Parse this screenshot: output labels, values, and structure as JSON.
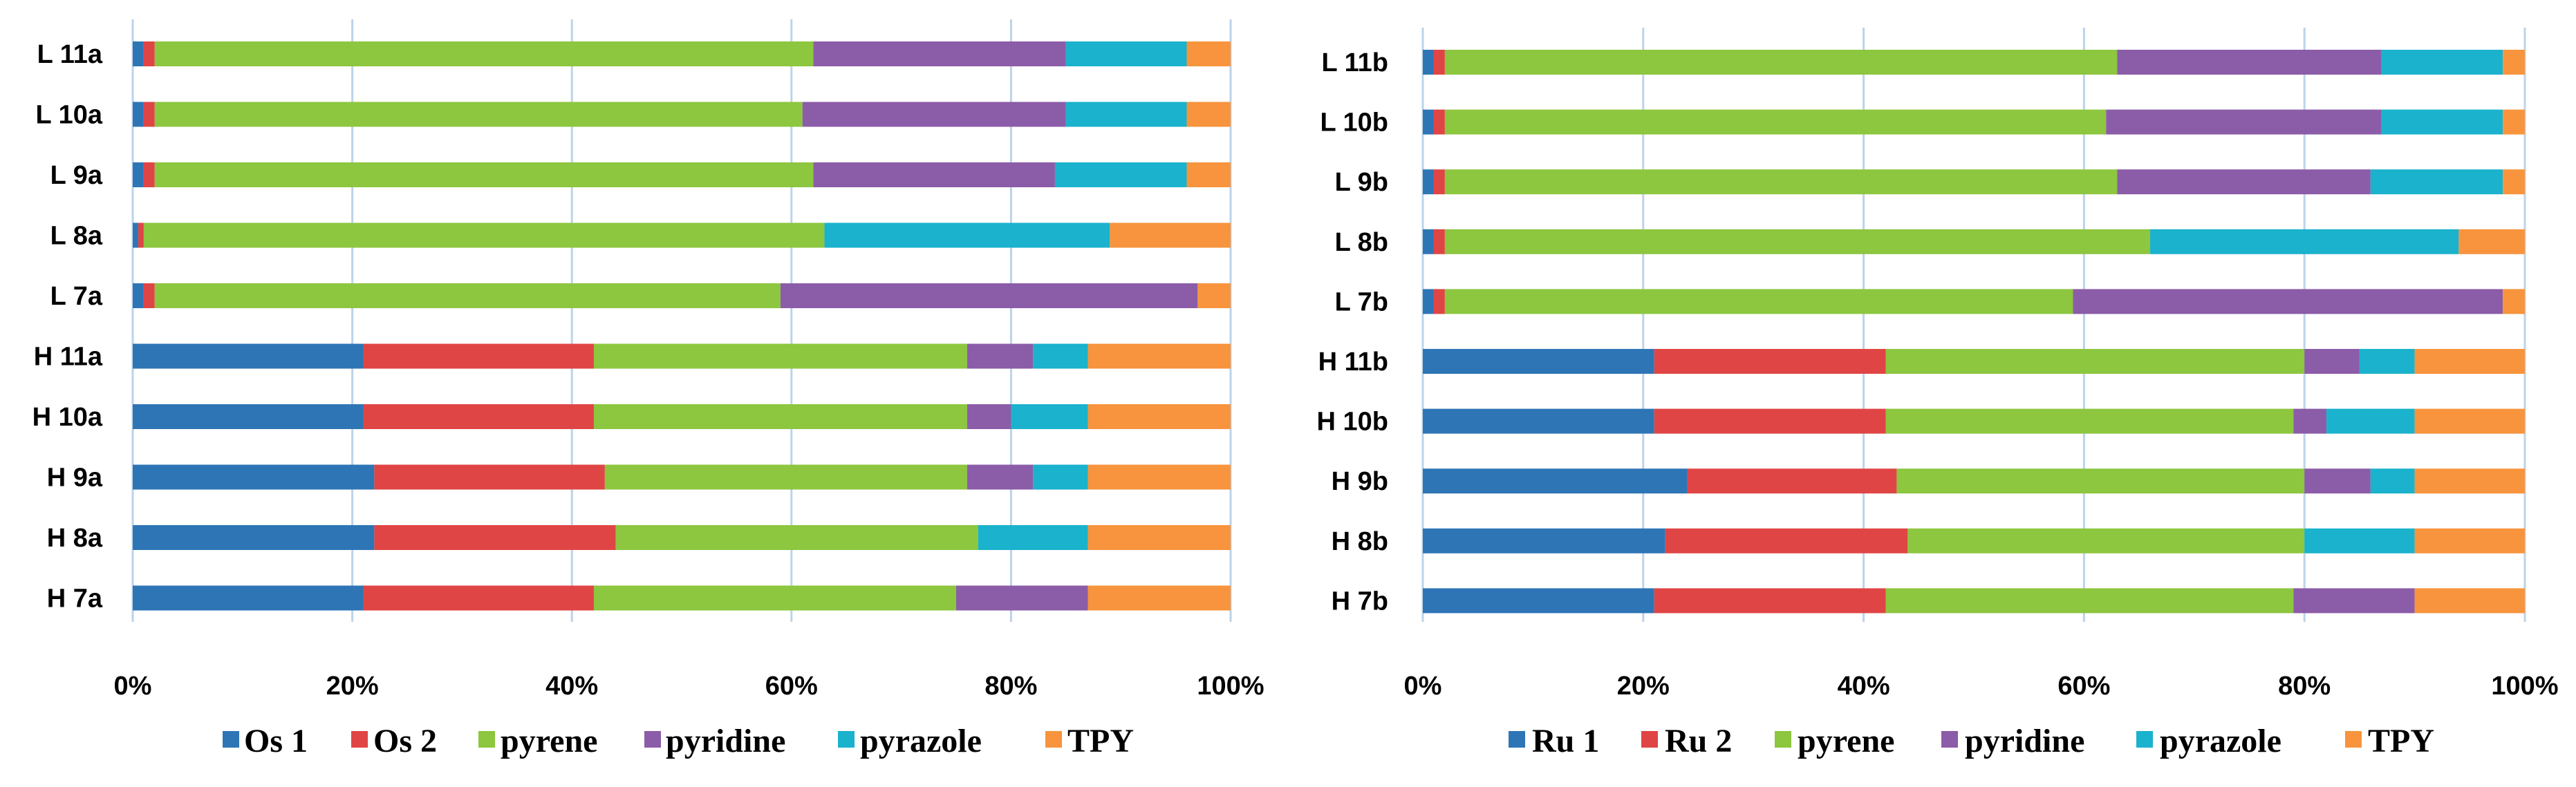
{
  "colors": {
    "metal1": "#2e75b6",
    "metal2": "#e04545",
    "pyrene": "#8dc63f",
    "pyridine": "#8b5ca8",
    "pyrazole": "#1ab2cc",
    "tpy": "#f7943d",
    "grid": "#bcd3ea"
  },
  "chart_data": [
    {
      "type": "bar",
      "orientation": "horizontal",
      "stacked": true,
      "title": "",
      "xlabel": "",
      "ylabel": "",
      "xlim": [
        0,
        100
      ],
      "x_ticks": [
        "0%",
        "20%",
        "40%",
        "60%",
        "80%",
        "100%"
      ],
      "legend_position": "bottom",
      "categories": [
        "L  11a",
        "L  10a",
        "L  9a",
        "L  8a",
        "L  7a",
        "H  11a",
        "H  10a",
        "H  9a",
        "H  8a",
        "H  7a"
      ],
      "series": [
        {
          "name": "Os 1",
          "color_key": "metal1",
          "values": [
            1,
            1,
            1,
            0.5,
            1,
            21,
            21,
            22,
            22,
            21
          ]
        },
        {
          "name": "Os 2",
          "color_key": "metal2",
          "values": [
            1,
            1,
            1,
            0.5,
            1,
            21,
            21,
            21,
            22,
            21
          ]
        },
        {
          "name": "pyrene",
          "color_key": "pyrene",
          "values": [
            60,
            59,
            60,
            62,
            57,
            34,
            34,
            33,
            33,
            33
          ]
        },
        {
          "name": "pyridine",
          "color_key": "pyridine",
          "values": [
            23,
            24,
            22,
            0,
            38,
            6,
            4,
            6,
            0,
            12
          ]
        },
        {
          "name": "pyrazole",
          "color_key": "pyrazole",
          "values": [
            11,
            11,
            12,
            26,
            0,
            5,
            7,
            5,
            10,
            0
          ]
        },
        {
          "name": "TPY",
          "color_key": "tpy",
          "values": [
            4,
            4,
            4,
            11,
            3,
            13,
            13,
            13,
            13,
            13
          ]
        }
      ]
    },
    {
      "type": "bar",
      "orientation": "horizontal",
      "stacked": true,
      "title": "",
      "xlabel": "",
      "ylabel": "",
      "xlim": [
        0,
        100
      ],
      "x_ticks": [
        "0%",
        "20%",
        "40%",
        "60%",
        "80%",
        "100%"
      ],
      "legend_position": "bottom",
      "categories": [
        "L  11b",
        "L  10b",
        "L  9b",
        "L  8b",
        "L  7b",
        "H  11b",
        "H  10b",
        "H  9b",
        "H  8b",
        "H  7b"
      ],
      "series": [
        {
          "name": "Ru 1",
          "color_key": "metal1",
          "values": [
            1,
            1,
            1,
            1,
            1,
            21,
            21,
            24,
            22,
            21
          ]
        },
        {
          "name": "Ru 2",
          "color_key": "metal2",
          "values": [
            1,
            1,
            1,
            1,
            1,
            21,
            21,
            19,
            22,
            21
          ]
        },
        {
          "name": "pyrene",
          "color_key": "pyrene",
          "values": [
            61,
            60,
            61,
            64,
            57,
            38,
            37,
            37,
            36,
            37
          ]
        },
        {
          "name": "pyridine",
          "color_key": "pyridine",
          "values": [
            24,
            25,
            23,
            0,
            39,
            5,
            3,
            6,
            0,
            11
          ]
        },
        {
          "name": "pyrazole",
          "color_key": "pyrazole",
          "values": [
            11,
            11,
            12,
            28,
            0,
            5,
            8,
            4,
            10,
            0
          ]
        },
        {
          "name": "TPY",
          "color_key": "tpy",
          "values": [
            2,
            2,
            2,
            6,
            2,
            10,
            10,
            10,
            10,
            10
          ]
        }
      ]
    }
  ]
}
